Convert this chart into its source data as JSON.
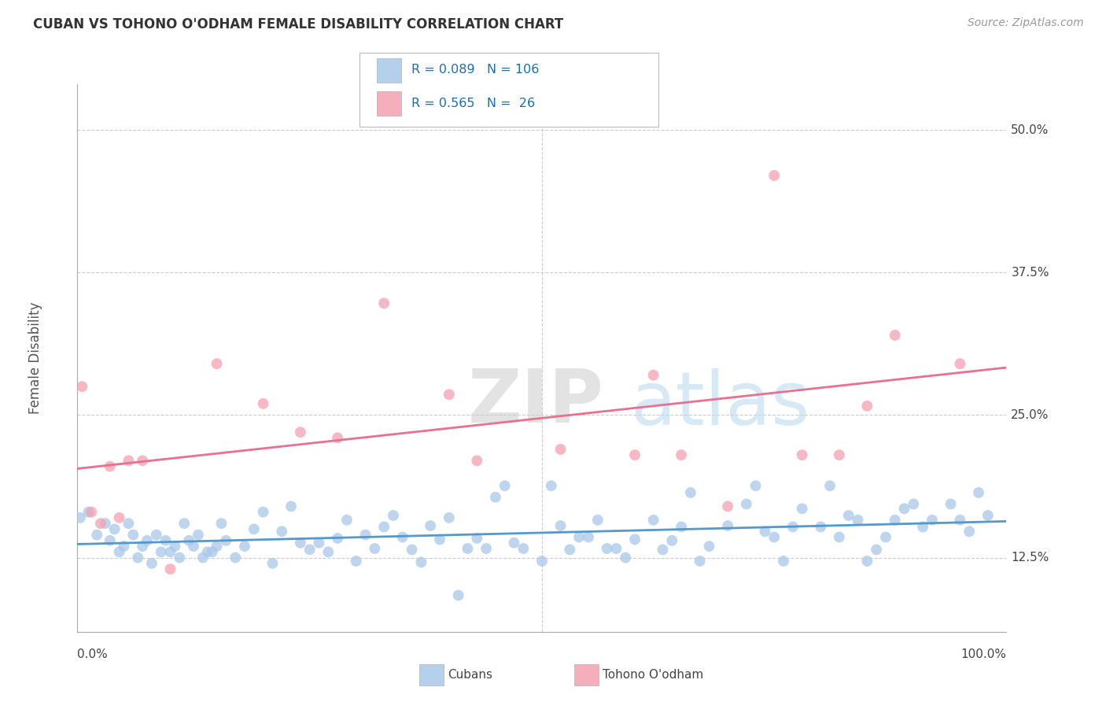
{
  "title": "CUBAN VS TOHONO O'ODHAM FEMALE DISABILITY CORRELATION CHART",
  "source": "Source: ZipAtlas.com",
  "ylabel": "Female Disability",
  "legend_labels": [
    "Cubans",
    "Tohono O'odham"
  ],
  "legend_r": [
    0.089,
    0.565
  ],
  "legend_n": [
    106,
    26
  ],
  "cubans_color": "#a8c8e8",
  "tohono_color": "#f4a0b0",
  "cubans_line_color": "#5599cc",
  "tohono_line_color": "#e87090",
  "background_color": "#ffffff",
  "grid_color": "#cccccc",
  "cubans_x": [
    0.3,
    1.2,
    2.1,
    3.0,
    3.5,
    4.0,
    4.5,
    5.0,
    5.5,
    6.0,
    6.5,
    7.0,
    7.5,
    8.0,
    8.5,
    9.0,
    9.5,
    10.0,
    10.5,
    11.0,
    11.5,
    12.0,
    12.5,
    13.0,
    13.5,
    14.0,
    14.5,
    15.0,
    15.5,
    16.0,
    17.0,
    18.0,
    19.0,
    20.0,
    21.0,
    22.0,
    23.0,
    24.0,
    25.0,
    26.0,
    27.0,
    28.0,
    29.0,
    30.0,
    31.0,
    32.0,
    33.0,
    34.0,
    35.0,
    36.0,
    37.0,
    38.0,
    39.0,
    40.0,
    41.0,
    42.0,
    43.0,
    44.0,
    45.0,
    46.0,
    47.0,
    48.0,
    50.0,
    51.0,
    52.0,
    53.0,
    54.0,
    55.0,
    56.0,
    57.0,
    58.0,
    59.0,
    60.0,
    62.0,
    63.0,
    64.0,
    65.0,
    66.0,
    67.0,
    68.0,
    70.0,
    72.0,
    73.0,
    74.0,
    75.0,
    76.0,
    77.0,
    78.0,
    80.0,
    81.0,
    82.0,
    83.0,
    84.0,
    85.0,
    86.0,
    87.0,
    88.0,
    89.0,
    90.0,
    91.0,
    92.0,
    94.0,
    95.0,
    96.0,
    97.0,
    98.0
  ],
  "cubans_y": [
    0.16,
    0.165,
    0.145,
    0.155,
    0.14,
    0.15,
    0.13,
    0.135,
    0.155,
    0.145,
    0.125,
    0.135,
    0.14,
    0.12,
    0.145,
    0.13,
    0.14,
    0.13,
    0.135,
    0.125,
    0.155,
    0.14,
    0.135,
    0.145,
    0.125,
    0.13,
    0.13,
    0.135,
    0.155,
    0.14,
    0.125,
    0.135,
    0.15,
    0.165,
    0.12,
    0.148,
    0.17,
    0.138,
    0.132,
    0.138,
    0.13,
    0.142,
    0.158,
    0.122,
    0.145,
    0.133,
    0.152,
    0.162,
    0.143,
    0.132,
    0.121,
    0.153,
    0.141,
    0.16,
    0.092,
    0.133,
    0.142,
    0.133,
    0.178,
    0.188,
    0.138,
    0.133,
    0.122,
    0.188,
    0.153,
    0.132,
    0.143,
    0.143,
    0.158,
    0.133,
    0.133,
    0.125,
    0.141,
    0.158,
    0.132,
    0.14,
    0.152,
    0.182,
    0.122,
    0.135,
    0.153,
    0.172,
    0.188,
    0.148,
    0.143,
    0.122,
    0.152,
    0.168,
    0.152,
    0.188,
    0.143,
    0.162,
    0.158,
    0.122,
    0.132,
    0.143,
    0.158,
    0.168,
    0.172,
    0.152,
    0.158,
    0.172,
    0.158,
    0.148,
    0.182,
    0.162
  ],
  "tohono_x": [
    0.5,
    1.5,
    2.5,
    3.5,
    4.5,
    5.5,
    7.0,
    10.0,
    15.0,
    20.0,
    24.0,
    28.0,
    33.0,
    40.0,
    43.0,
    52.0,
    60.0,
    62.0,
    65.0,
    70.0,
    75.0,
    78.0,
    82.0,
    85.0,
    88.0,
    95.0
  ],
  "tohono_y": [
    0.275,
    0.165,
    0.155,
    0.205,
    0.16,
    0.21,
    0.21,
    0.115,
    0.295,
    0.26,
    0.235,
    0.23,
    0.348,
    0.268,
    0.21,
    0.22,
    0.215,
    0.285,
    0.215,
    0.17,
    0.46,
    0.215,
    0.215,
    0.258,
    0.32,
    0.295
  ],
  "xmin": 0,
  "xmax": 100,
  "ymin": 0.06,
  "ymax": 0.54,
  "ytick_vals": [
    0.125,
    0.25,
    0.375,
    0.5
  ],
  "ytick_labels": [
    "12.5%",
    "25.0%",
    "37.5%",
    "50.0%"
  ]
}
